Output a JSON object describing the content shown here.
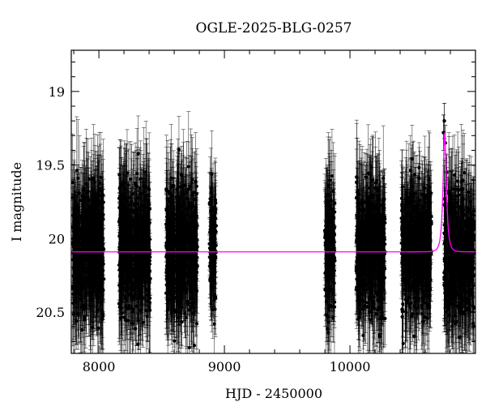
{
  "chart_data": {
    "type": "scatter",
    "title": "OGLE-2025-BLG-0257",
    "xlabel": "HJD - 2450000",
    "ylabel": "I magnitude",
    "xlim": [
      7780,
      11000
    ],
    "ylim": [
      20.78,
      18.72
    ],
    "y_inverted": true,
    "grid": false,
    "x_ticks": [
      {
        "value": 8000,
        "label": "8000"
      },
      {
        "value": 9000,
        "label": "9000"
      },
      {
        "value": 10000,
        "label": "10000"
      }
    ],
    "y_ticks": [
      {
        "value": 19,
        "label": "19"
      },
      {
        "value": 19.5,
        "label": "19.5"
      },
      {
        "value": 20,
        "label": "20"
      },
      {
        "value": 20.5,
        "label": "20.5"
      }
    ],
    "series": [
      {
        "kind": "points_with_errorbars",
        "color": "#000000",
        "seasons": [
          {
            "x_start": 7790,
            "x_end": 8040,
            "mean_mag": 20.08,
            "scatter": 0.22,
            "mean_err": 0.28
          },
          {
            "x_start": 8160,
            "x_end": 8410,
            "mean_mag": 20.08,
            "scatter": 0.22,
            "mean_err": 0.28
          },
          {
            "x_start": 8535,
            "x_end": 8785,
            "mean_mag": 20.08,
            "scatter": 0.22,
            "mean_err": 0.28
          },
          {
            "x_start": 8880,
            "x_end": 8935,
            "mean_mag": 20.08,
            "scatter": 0.2,
            "mean_err": 0.22
          },
          {
            "x_start": 9800,
            "x_end": 9880,
            "mean_mag": 20.1,
            "scatter": 0.22,
            "mean_err": 0.28
          },
          {
            "x_start": 10050,
            "x_end": 10280,
            "mean_mag": 20.08,
            "scatter": 0.22,
            "mean_err": 0.28
          },
          {
            "x_start": 10410,
            "x_end": 10650,
            "mean_mag": 20.08,
            "scatter": 0.22,
            "mean_err": 0.28
          },
          {
            "x_start": 10750,
            "x_end": 10990,
            "mean_mag": 20.1,
            "scatter": 0.22,
            "mean_err": 0.28
          }
        ],
        "peak_points": [
          {
            "x": 10745,
            "y": 19.28
          },
          {
            "x": 10752,
            "y": 19.2
          },
          {
            "x": 10760,
            "y": 19.35
          },
          {
            "x": 10770,
            "y": 19.55
          }
        ]
      },
      {
        "kind": "model_curve",
        "color": "#ff00ff",
        "baseline_mag": 20.09,
        "peak_x": 10755,
        "peak_mag": 19.28,
        "tE_days": 22
      }
    ]
  }
}
